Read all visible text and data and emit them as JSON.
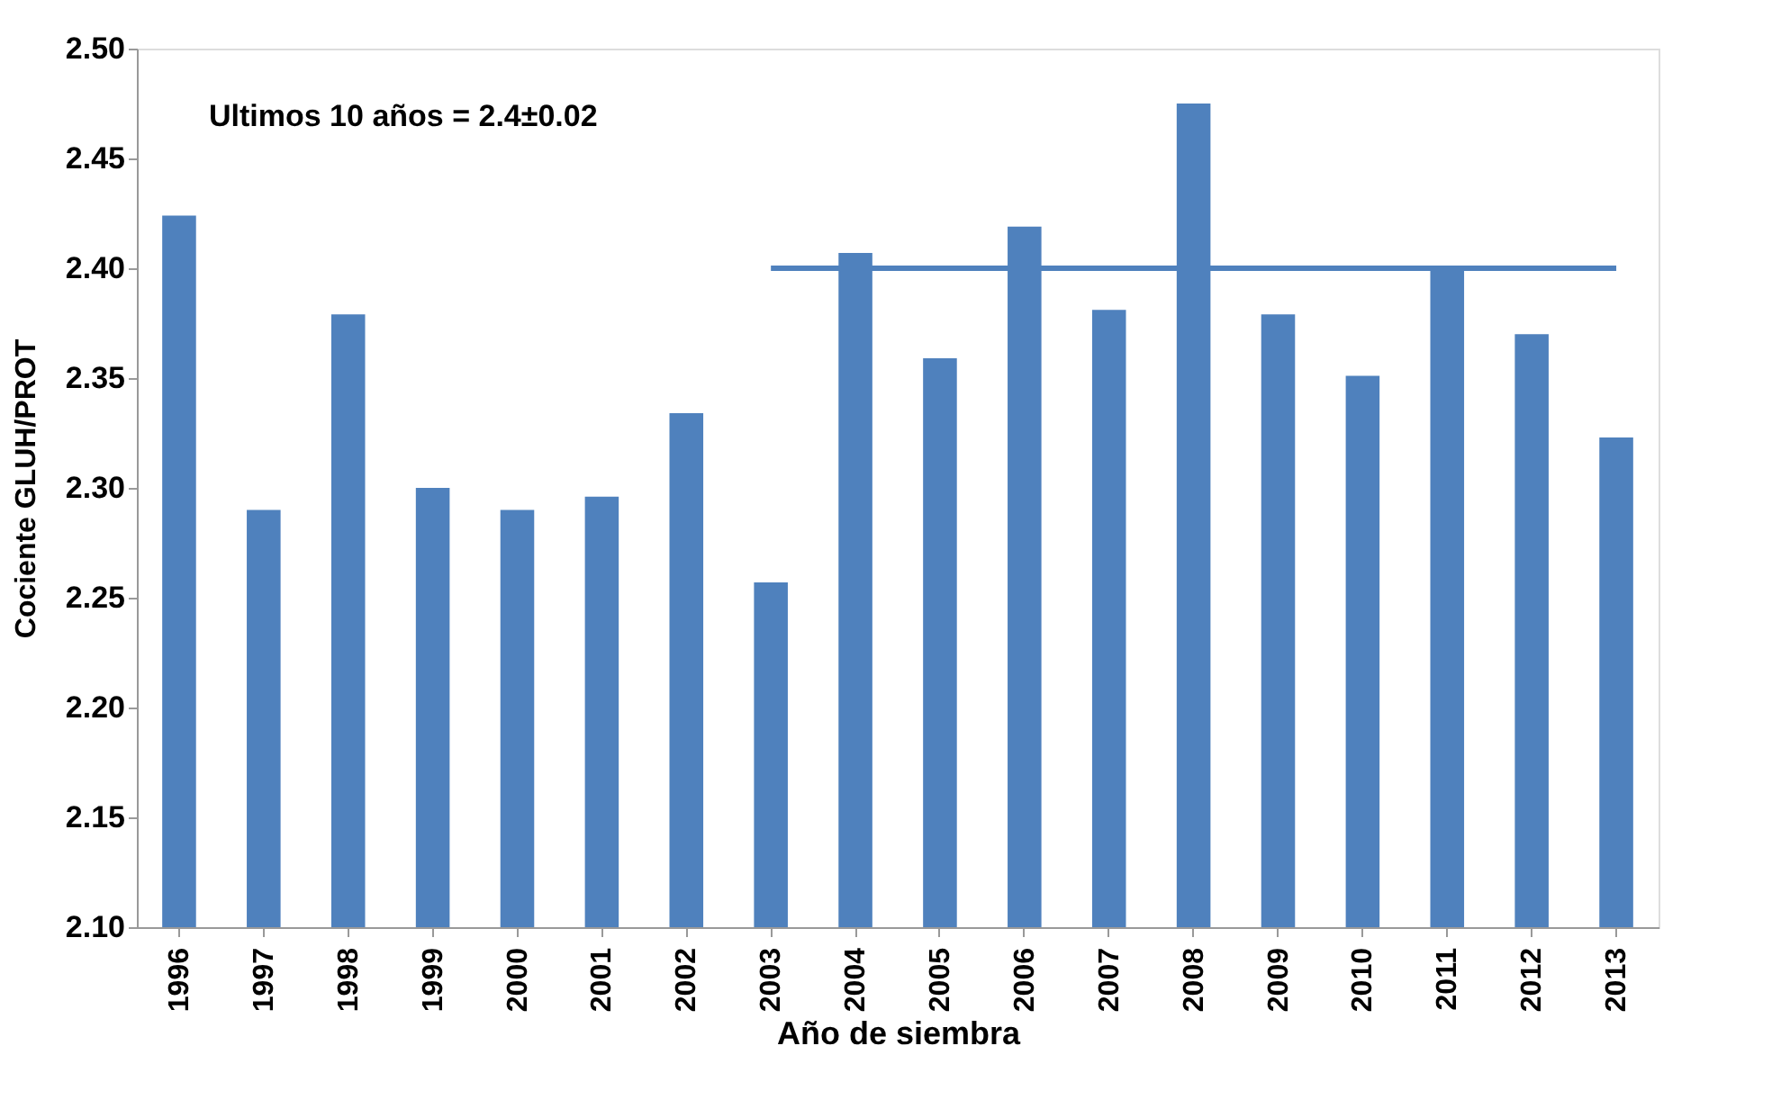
{
  "chart_data": {
    "type": "bar",
    "xlabel": "Año de siembra",
    "ylabel": "Cociente GLUH/PROT",
    "categories": [
      "1996",
      "1997",
      "1998",
      "1999",
      "2000",
      "2001",
      "2002",
      "2003",
      "2004",
      "2005",
      "2006",
      "2007",
      "2008",
      "2009",
      "2010",
      "2011",
      "2012",
      "2013"
    ],
    "series": [
      {
        "color": "#4f81bd",
        "values": [
          2.424,
          2.29,
          2.379,
          2.3,
          2.29,
          2.296,
          2.334,
          2.257,
          2.407,
          2.359,
          2.419,
          2.381,
          2.475,
          2.379,
          2.351,
          2.4,
          2.37,
          2.323
        ]
      },
      {
        "type": "line",
        "color": "#4f81bd",
        "values": [
          null,
          null,
          null,
          null,
          null,
          null,
          null,
          2.4,
          2.4,
          2.4,
          2.4,
          2.4,
          2.4,
          2.4,
          2.4,
          2.4,
          2.4,
          2.4
        ]
      }
    ],
    "ylim": [
      2.1,
      2.5
    ],
    "yticks": [
      {
        "value": 2.1,
        "label": "2.10"
      },
      {
        "value": 2.15,
        "label": "2.15"
      },
      {
        "value": 2.2,
        "label": "2.20"
      },
      {
        "value": 2.25,
        "label": "2.25"
      },
      {
        "value": 2.3,
        "label": "2.30"
      },
      {
        "value": 2.35,
        "label": "2.35"
      },
      {
        "value": 2.4,
        "label": "2.40"
      },
      {
        "value": 2.45,
        "label": "2.45"
      },
      {
        "value": 2.5,
        "label": "2.50"
      }
    ],
    "grid": false,
    "annotations": [
      "Ultimos 10 años = 2.4±0.02"
    ]
  }
}
